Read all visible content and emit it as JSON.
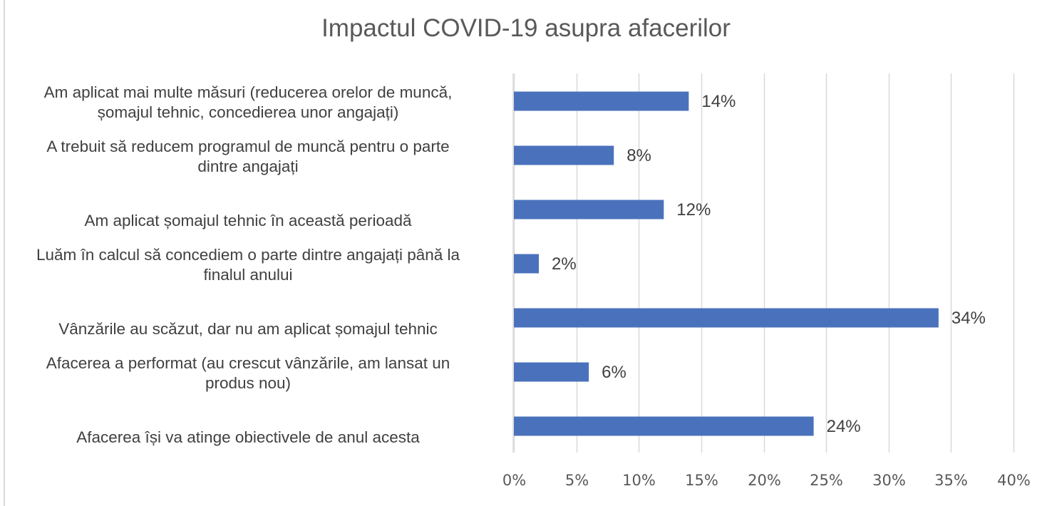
{
  "chart_data": {
    "type": "bar",
    "orientation": "horizontal",
    "title": "Impactul COVID-19 asupra afacerilor",
    "xlabel": "",
    "ylabel": "",
    "categories": [
      "Am aplicat mai multe măsuri (reducerea orelor de muncă, șomajul tehnic, concedierea unor angajați)",
      "A trebuit să reducem programul de muncă pentru o parte dintre angajați",
      "Am aplicat șomajul tehnic în această perioadă",
      "Luăm în calcul să concediem o parte dintre angajați până la finalul anului",
      "Vânzările au scăzut, dar nu am aplicat șomajul tehnic",
      "Afacerea a performat (au crescut vânzările, am lansat un produs nou)",
      "Afacerea își va atinge obiectivele de anul acesta"
    ],
    "category_lines": [
      [
        "Am aplicat mai multe măsuri (reducerea orelor de muncă,",
        "șomajul tehnic, concedierea unor angajați)"
      ],
      [
        "A trebuit să reducem programul de muncă pentru o parte",
        "dintre angajați"
      ],
      [
        "",
        "Am aplicat șomajul tehnic în această perioadă"
      ],
      [
        "Luăm în calcul să concediem o parte dintre angajați până la",
        "finalul anului"
      ],
      [
        "",
        "Vânzările au scăzut, dar nu am aplicat șomajul tehnic"
      ],
      [
        "Afacerea a performat (au crescut vânzările, am lansat un",
        "produs nou)"
      ],
      [
        "",
        "Afacerea își va atinge obiectivele de anul acesta"
      ]
    ],
    "values": [
      14,
      8,
      12,
      2,
      34,
      6,
      24
    ],
    "data_labels": [
      "14%",
      "8%",
      "12%",
      "2%",
      "34%",
      "6%",
      "24%"
    ],
    "xlim": [
      0,
      40
    ],
    "xticks": [
      0,
      5,
      10,
      15,
      20,
      25,
      30,
      35,
      40
    ],
    "xtick_labels": [
      "0%",
      "5%",
      "10%",
      "15%",
      "20%",
      "25%",
      "30%",
      "35%",
      "40%"
    ],
    "grid": "vertical",
    "legend": "none",
    "bar_color": "#4a72bc"
  }
}
